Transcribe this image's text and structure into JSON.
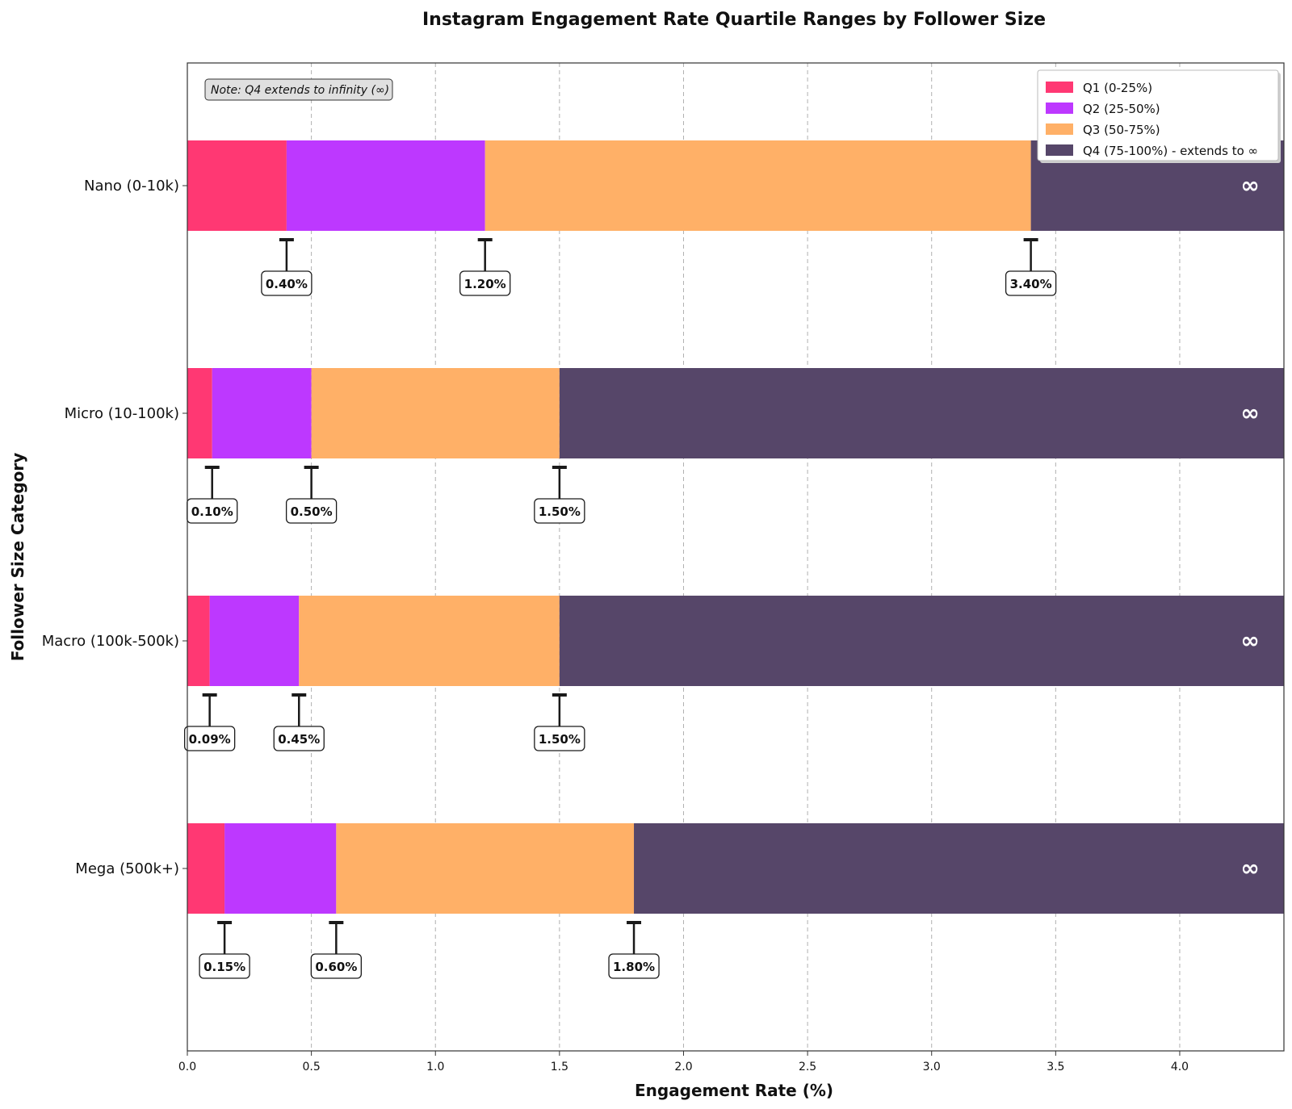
{
  "chart_data": {
    "type": "bar",
    "orientation": "horizontal-stacked",
    "title": "Instagram Engagement Rate Quartile Ranges by Follower Size",
    "xlabel": "Engagement Rate (%)",
    "ylabel": "Follower Size Category",
    "xlim": [
      0,
      4.42
    ],
    "x_ticks": [
      "0.0",
      "0.5",
      "1.0",
      "1.5",
      "2.0",
      "2.5",
      "3.0",
      "3.5",
      "4.0"
    ],
    "x_tick_values": [
      0,
      0.5,
      1.0,
      1.5,
      2.0,
      2.5,
      3.0,
      3.5,
      4.0
    ],
    "grid": "vertical dashed",
    "legend_position": "top-right",
    "categories": [
      "Nano (0-10k)",
      "Micro (10-100k)",
      "Macro (100k-500k)",
      "Mega (500k+)"
    ],
    "boundaries": [
      {
        "q1": 0.4,
        "q2": 1.2,
        "q3": 3.4,
        "labels": [
          "0.40%",
          "1.20%",
          "3.40%"
        ]
      },
      {
        "q1": 0.1,
        "q2": 0.5,
        "q3": 1.5,
        "labels": [
          "0.10%",
          "0.50%",
          "1.50%"
        ]
      },
      {
        "q1": 0.09,
        "q2": 0.45,
        "q3": 1.5,
        "labels": [
          "0.09%",
          "0.45%",
          "1.50%"
        ]
      },
      {
        "q1": 0.15,
        "q2": 0.6,
        "q3": 1.8,
        "labels": [
          "0.15%",
          "0.60%",
          "1.80%"
        ]
      }
    ],
    "series": [
      {
        "name": "Q1 (0-25%)",
        "color": "#ff3873"
      },
      {
        "name": "Q2 (25-50%)",
        "color": "#bd38ff"
      },
      {
        "name": "Q3 (50-75%)",
        "color": "#ffb067"
      },
      {
        "name": "Q4 (75-100%) - extends to ∞",
        "color": "#564669"
      }
    ],
    "infinity_symbol": "∞",
    "annotation": "Note: Q4 extends to infinity (∞)"
  }
}
